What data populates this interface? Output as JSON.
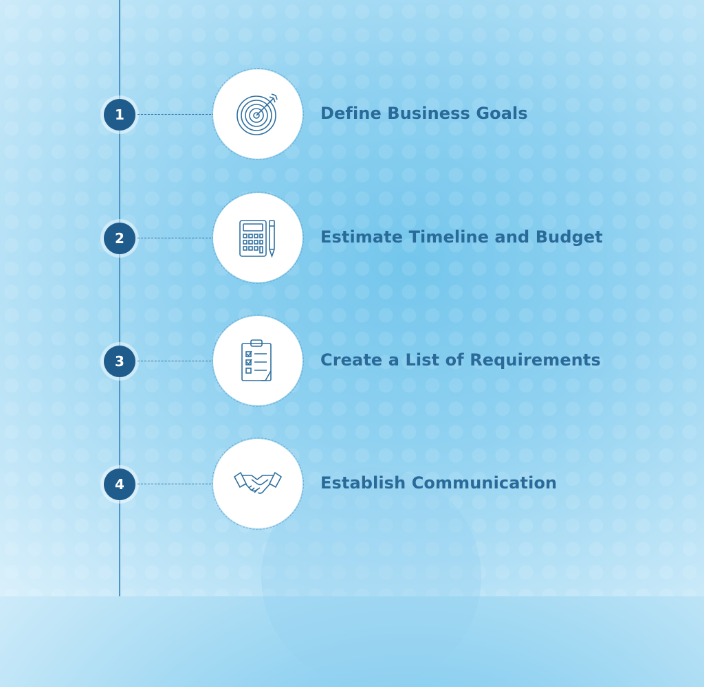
{
  "steps": [
    {
      "number": "1",
      "label": "Define Business Goals",
      "icon": "target-icon"
    },
    {
      "number": "2",
      "label": "Estimate Timeline and Budget",
      "icon": "calculator-icon"
    },
    {
      "number": "3",
      "label": "Create a List of Requirements",
      "icon": "checklist-icon"
    },
    {
      "number": "4",
      "label": "Establish Communication",
      "icon": "handshake-icon"
    }
  ],
  "colors": {
    "badge": "#1f5c8c",
    "label": "#2a6a99",
    "icon_stroke": "#2f6f9f",
    "timeline": "#4f93c2"
  }
}
